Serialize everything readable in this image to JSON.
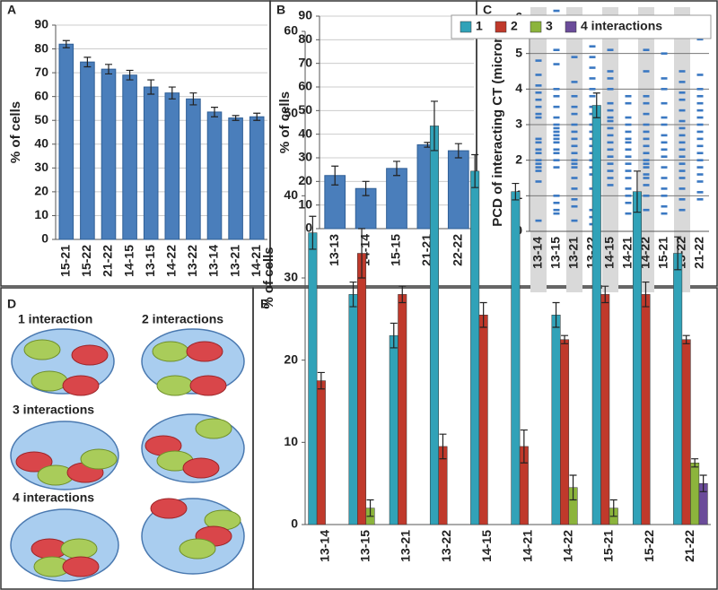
{
  "chart_data": [
    {
      "type": "bar",
      "panel": "A",
      "ylabel": "% of cells",
      "categories": [
        "15-21",
        "15-22",
        "21-22",
        "14-15",
        "13-15",
        "14-22",
        "13-22",
        "13-14",
        "13-21",
        "14-21"
      ],
      "values": [
        82,
        74.5,
        71.5,
        69,
        64,
        61.5,
        59,
        53.5,
        51,
        51.5
      ],
      "errors": [
        1.5,
        2,
        2,
        2,
        3,
        2.5,
        2.5,
        2,
        1,
        1.5
      ],
      "color": "#4a7ebb",
      "ylim": [
        0,
        90
      ],
      "yticks": [
        0,
        10,
        20,
        30,
        40,
        50,
        60,
        70,
        80,
        90
      ],
      "grid": true
    },
    {
      "type": "bar",
      "panel": "B",
      "ylabel": "% of cells",
      "categories": [
        "13-13",
        "14-14",
        "15-15",
        "21-21",
        "22-22"
      ],
      "values": [
        22.5,
        17,
        25.5,
        35.5,
        33
      ],
      "errors": [
        4,
        3,
        3,
        1,
        3
      ],
      "color": "#4a7ebb",
      "ylim": [
        0,
        90
      ],
      "yticks": [
        0,
        10,
        20,
        30,
        40,
        50,
        60,
        70,
        80,
        90
      ],
      "grid": true
    },
    {
      "type": "strip",
      "panel": "C",
      "ylabel": "PCD of interacting CT (microns)",
      "categories": [
        "13-14",
        "13-15",
        "13-21",
        "13-22",
        "14-15",
        "14-21",
        "14-22",
        "15-21",
        "15-22",
        "21-22"
      ],
      "values": [
        [
          4.8,
          4.4,
          4.1,
          3.9,
          3.7,
          3.5,
          3.3,
          3.2,
          2.6,
          2.5,
          2.3,
          2.2,
          2.0,
          1.9,
          1.8,
          1.7,
          1.4,
          0.3
        ],
        [
          6.2,
          6.0,
          5.1,
          4.7,
          4.0,
          3.8,
          3.5,
          3.2,
          3.0,
          2.9,
          2.8,
          2.7,
          2.6,
          2.5,
          2.3,
          2.2,
          2.0,
          1.8,
          1.0,
          0.8,
          0.6,
          0.5
        ],
        [
          4.9,
          4.2,
          3.8,
          3.5,
          3.3,
          3.0,
          2.8,
          2.6,
          2.4,
          2.2,
          2.0,
          1.9,
          1.8,
          1.5,
          1.2,
          0.9,
          0.7,
          0.3
        ],
        [
          5.2,
          4.9,
          4.6,
          4.3,
          4.0,
          3.8,
          3.5,
          3.3,
          3.0,
          2.8,
          2.6,
          2.4,
          2.2,
          2.0,
          1.8,
          1.6,
          1.2,
          0.6,
          0.4,
          0.2
        ],
        [
          5.9,
          5.1,
          4.5,
          4.3,
          4.0,
          3.6,
          3.4,
          3.2,
          3.1,
          2.9,
          2.7,
          2.5,
          2.3,
          2.1,
          1.9,
          1.7,
          1.5,
          1.3
        ],
        [
          3.8,
          3.6,
          3.2,
          3.0,
          2.8,
          2.6,
          2.5,
          2.3,
          2.1,
          1.9,
          1.7,
          1.5,
          1.2,
          1.0,
          0.8,
          0.5
        ],
        [
          5.9,
          5.7,
          5.1,
          4.5,
          3.8,
          3.6,
          3.3,
          3.0,
          2.8,
          2.6,
          2.4,
          2.2,
          2.0,
          1.9,
          1.8,
          1.6,
          1.5,
          1.3,
          1.0,
          0.6
        ],
        [
          5.6,
          5.0,
          4.3,
          4.0,
          3.6,
          3.2,
          3.0,
          2.7,
          2.5,
          2.3,
          2.1,
          1.8,
          1.5,
          1.2,
          1.0,
          0.7,
          0.5
        ],
        [
          4.5,
          4.2,
          3.9,
          3.7,
          3.4,
          3.1,
          2.9,
          2.7,
          2.5,
          2.3,
          2.1,
          1.9,
          1.7,
          1.5,
          1.2,
          0.9,
          0.6
        ],
        [
          5.4,
          4.4,
          4.0,
          3.8,
          3.6,
          3.4,
          3.2,
          3.0,
          2.8,
          2.6,
          2.4,
          2.2,
          2.0,
          1.8,
          1.6,
          1.4,
          1.1,
          0.9
        ]
      ],
      "color": "#3a78c2",
      "ylim": [
        0,
        6
      ],
      "yticks": [
        0,
        1,
        2,
        3,
        4,
        5,
        6
      ],
      "grid": true
    },
    {
      "type": "grouped-bar",
      "panel": "E",
      "ylabel": "% of cells",
      "categories": [
        "13-14",
        "13-15",
        "13-21",
        "13-22",
        "14-15",
        "14-21",
        "14-22",
        "15-21",
        "15-22",
        "21-22"
      ],
      "series": [
        {
          "name": "1",
          "color": "#31a2b8",
          "values": [
            35.5,
            28,
            23,
            48.5,
            43,
            40.5,
            25.5,
            51,
            40.5,
            33
          ],
          "errors": [
            2,
            1.5,
            1.5,
            3,
            2,
            1,
            1.5,
            1.5,
            2.5,
            2
          ]
        },
        {
          "name": "2",
          "color": "#c0392b",
          "values": [
            17.5,
            33,
            28,
            9.5,
            25.5,
            9.5,
            22.5,
            28,
            28,
            22.5
          ],
          "errors": [
            1,
            3,
            1,
            1.5,
            1.5,
            2,
            0.5,
            1,
            1.5,
            0.5
          ]
        },
        {
          "name": "3",
          "color": "#8cb43c",
          "values": [
            null,
            2,
            null,
            null,
            null,
            null,
            4.5,
            2,
            null,
            7.5
          ],
          "errors": [
            null,
            1,
            null,
            null,
            null,
            null,
            1.5,
            1,
            null,
            0.5
          ]
        },
        {
          "name": "4 interactions",
          "color": "#6b4c9a",
          "values": [
            null,
            null,
            null,
            null,
            null,
            null,
            null,
            null,
            null,
            5
          ],
          "errors": [
            null,
            null,
            null,
            null,
            null,
            null,
            null,
            null,
            null,
            1
          ]
        }
      ],
      "ylim": [
        0,
        60
      ],
      "yticks": [
        0,
        10,
        20,
        30,
        40,
        50,
        60
      ],
      "grid": false,
      "legend": "top-right"
    }
  ],
  "diagram": {
    "panel": "D",
    "labels": [
      "1 interaction",
      "2 interactions",
      "3 interactions",
      "4 interactions"
    ]
  }
}
